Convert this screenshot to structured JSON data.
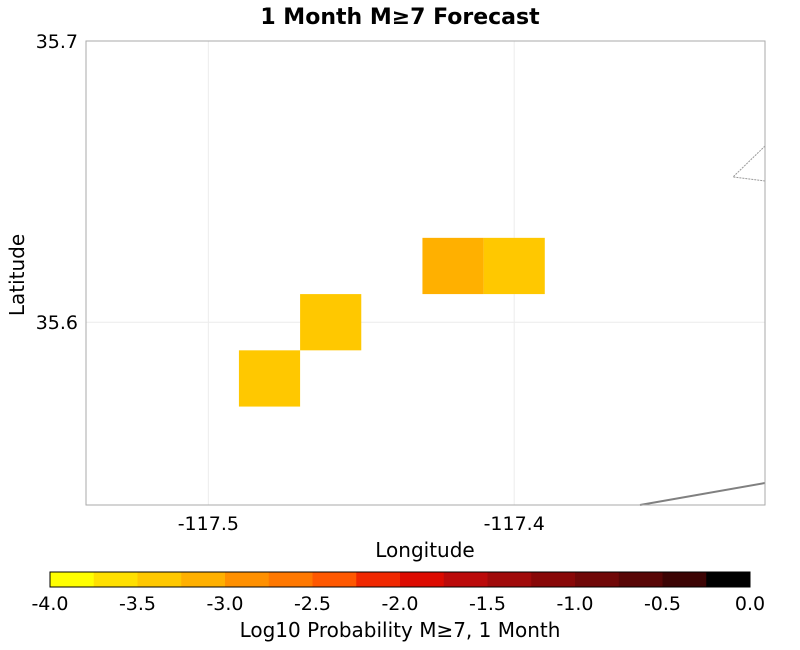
{
  "chart_data": {
    "type": "heatmap",
    "title": "1 Month M≥7 Forecast",
    "xlabel": "Longitude",
    "ylabel": "Latitude",
    "xlim": [
      -117.54,
      -117.318
    ],
    "ylim": [
      35.535,
      35.7
    ],
    "xticks": [
      {
        "value": -117.5,
        "label": "-117.5"
      },
      {
        "value": -117.4,
        "label": "-117.4"
      }
    ],
    "yticks": [
      {
        "value": 35.7,
        "label": "35.7"
      },
      {
        "value": 35.6,
        "label": "35.6"
      }
    ],
    "grid": true,
    "cell_size": 0.02,
    "cells": [
      {
        "lon": -117.48,
        "lat": 35.58,
        "log10_prob": -3.3
      },
      {
        "lon": -117.46,
        "lat": 35.6,
        "log10_prob": -3.3
      },
      {
        "lon": -117.42,
        "lat": 35.62,
        "log10_prob": -3.1
      },
      {
        "lon": -117.4,
        "lat": 35.62,
        "log10_prob": -3.3
      }
    ],
    "colorbar": {
      "label": "Log10 Probability M≥7, 1 Month",
      "min": -4.0,
      "max": 0.0,
      "ticks": [
        "-4.0",
        "-3.5",
        "-3.0",
        "-2.5",
        "-2.0",
        "-1.5",
        "-1.0",
        "-0.5",
        "0.0"
      ],
      "colors": [
        "#ffff00",
        "#ffe000",
        "#ffc800",
        "#ffb000",
        "#ff9000",
        "#ff7800",
        "#ff5800",
        "#f02800",
        "#dc0a00",
        "#bb0a0a",
        "#a00a0a",
        "#880808",
        "#700808",
        "#580606",
        "#3c0404",
        "#000000"
      ]
    },
    "overlays": {
      "fault_color": "#808080"
    }
  }
}
